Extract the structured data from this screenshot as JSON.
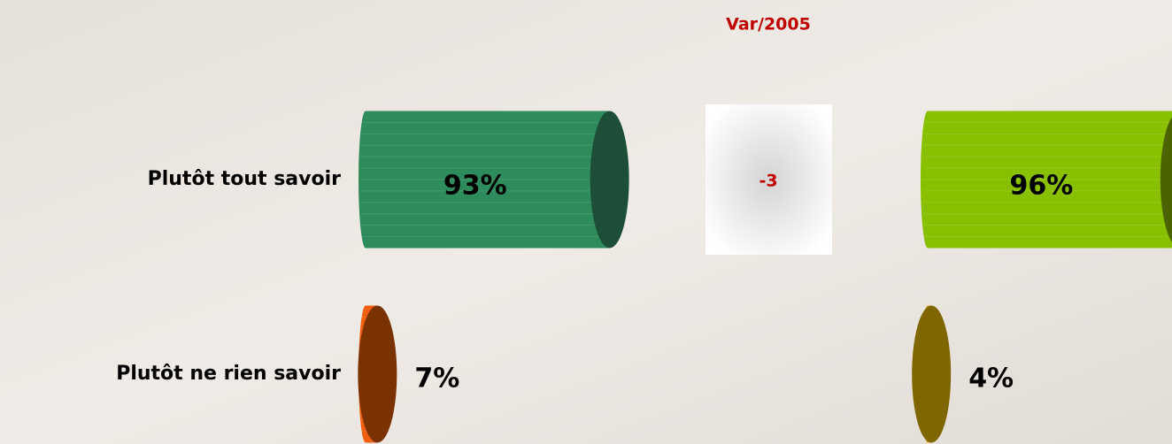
{
  "chart_data": {
    "type": "bar",
    "orientation": "horizontal",
    "categories": [
      "Plutôt tout savoir",
      "Plutôt ne rien savoir"
    ],
    "series": [
      {
        "colors": [
          "#2e8b5c",
          "#f06010"
        ],
        "cap_colors": [
          "#1d4f38",
          "#7a3200"
        ],
        "values": [
          93,
          7
        ],
        "value_labels": [
          "93%",
          "7%"
        ]
      },
      {
        "colors": [
          "#88c000",
          "#d8a800"
        ],
        "cap_colors": [
          "#4b6300",
          "#806600"
        ],
        "values": [
          96,
          4
        ],
        "value_labels": [
          "96%",
          "4%"
        ]
      }
    ],
    "variation": {
      "label": "Var/2005",
      "values": [
        -3,
        null
      ]
    }
  }
}
